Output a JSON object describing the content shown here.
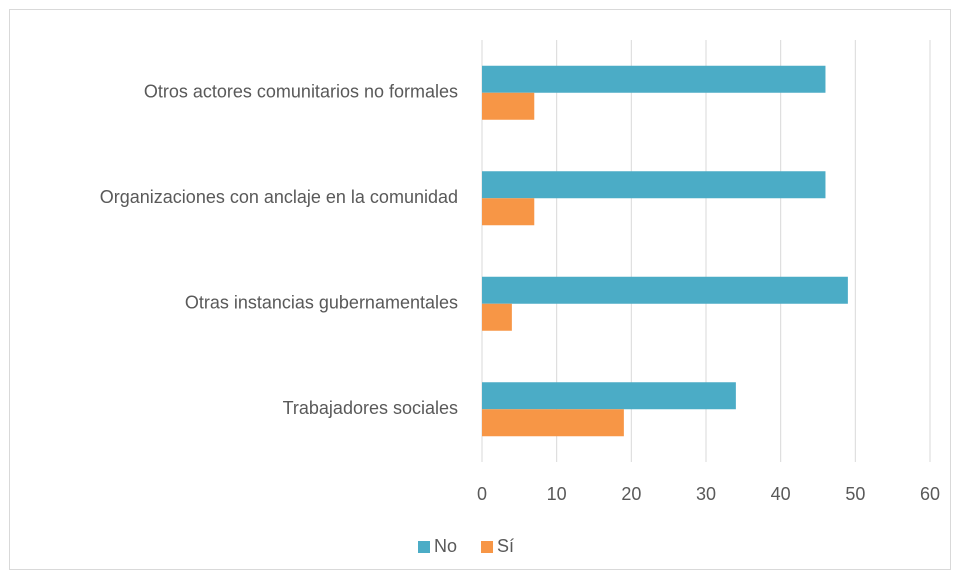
{
  "chart_data": {
    "type": "hbar",
    "categories": [
      "Otros actores comunitarios no formales",
      "Organizaciones con anclaje en la comunidad",
      "Otras instancias gubernamentales",
      "Trabajadores sociales"
    ],
    "series": [
      {
        "name": "No",
        "color": "#4bacc6",
        "values": [
          46,
          46,
          49,
          34
        ]
      },
      {
        "name": "Sí",
        "color": "#f79646",
        "values": [
          7,
          7,
          4,
          19
        ]
      }
    ],
    "xlim": [
      0,
      60
    ],
    "xticks": [
      0,
      10,
      20,
      30,
      40,
      50,
      60
    ],
    "grid": true,
    "legend": "bottom"
  }
}
